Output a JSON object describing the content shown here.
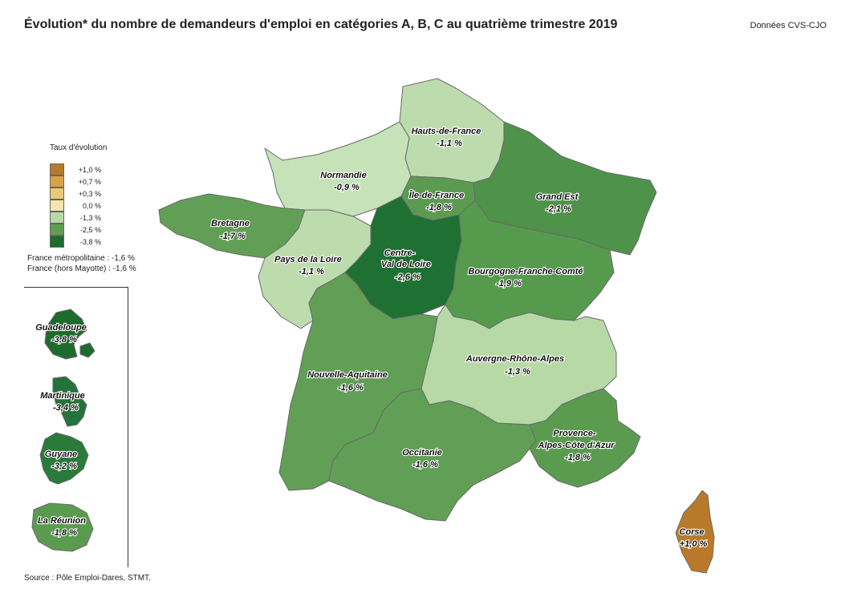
{
  "header": {
    "title": "Évolution* du nombre de demandeurs d'emploi en catégories A, B, C au quatrième trimestre 2019",
    "note": "Données CVS-CJO"
  },
  "legend": {
    "title": "Taux d'évolution",
    "items": [
      {
        "label": "+1,0 %",
        "color": "#b87a2a"
      },
      {
        "label": "+0,7 %",
        "color": "#d9a24a"
      },
      {
        "label": "+0,3 %",
        "color": "#ecc777"
      },
      {
        "label": "0,0 %",
        "color": "#f6e4b0"
      },
      {
        "label": "-1,3 %",
        "color": "#b8d9a8"
      },
      {
        "label": "-2,5 %",
        "color": "#5e9f52"
      },
      {
        "label": "-3,8 %",
        "color": "#1e6b2e"
      }
    ]
  },
  "totals": {
    "metro": "France métropolitaine : -1,6 %",
    "hors_mayotte": "France (hors Mayotte) : -1,6 %"
  },
  "source": "Source : Pôle Emploi-Dares, STMT.",
  "regions": {
    "hdf": {
      "name": "Hauts-de-France",
      "value": "-1,1 %",
      "color": "#bddcae"
    },
    "normandie": {
      "name": "Normandie",
      "value": "-0,9 %",
      "color": "#c6e2b8"
    },
    "idf": {
      "name": "Île-de-France",
      "value": "-1,8 %",
      "color": "#5b9b50"
    },
    "grand_est": {
      "name": "Grand Est",
      "value": "-2,1 %",
      "color": "#4f924a"
    },
    "bretagne": {
      "name": "Bretagne",
      "value": "-1,7 %",
      "color": "#629f56"
    },
    "pdl": {
      "name": "Pays de la Loire",
      "value": "-1,1 %",
      "color": "#bddcae"
    },
    "cvl": {
      "name_line1": "Centre-",
      "name_line2": "Val de Loire",
      "value": "-2,6 %",
      "color": "#1f7033"
    },
    "bfc": {
      "name": "Bourgogne-Franche-Comté",
      "value": "-1,9 %",
      "color": "#559a4d"
    },
    "aura": {
      "name": "Auvergne-Rhône-Alpes",
      "value": "-1,3 %",
      "color": "#b6d9a6"
    },
    "naq": {
      "name": "Nouvelle-Aquitaine",
      "value": "-1,6 %",
      "color": "#609f55"
    },
    "occ": {
      "name": "Occitanie",
      "value": "-1,6 %",
      "color": "#609f55"
    },
    "paca": {
      "name_line1": "Provence-",
      "name_line2": "Alpes-Côte d'Azur",
      "value": "-1,8 %",
      "color": "#5b9b50"
    },
    "corse": {
      "name": "Corse",
      "value": "+1,0 %",
      "color": "#b87a2a"
    },
    "guadeloupe": {
      "name": "Guadeloupe",
      "value": "-3,8 %",
      "color": "#1e6b2e"
    },
    "martinique": {
      "name": "Martinique",
      "value": "-3,4 %",
      "color": "#23733a"
    },
    "guyane": {
      "name": "Guyane",
      "value": "-3,2 %",
      "color": "#2a7a3a"
    },
    "reunion": {
      "name": "La Réunion",
      "value": "-1,8 %",
      "color": "#5b9b50"
    }
  }
}
